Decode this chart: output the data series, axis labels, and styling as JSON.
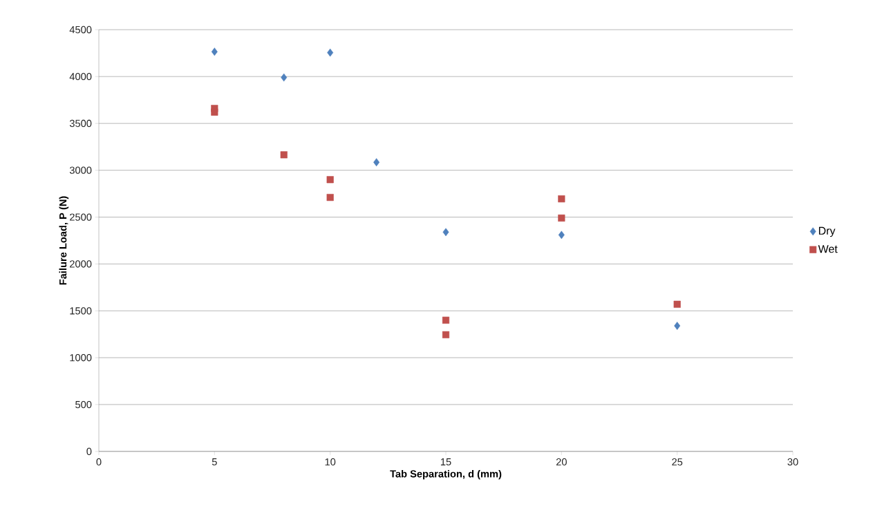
{
  "chart_data": {
    "type": "scatter",
    "xlabel": "Tab Separation, d (mm)",
    "ylabel": "Failure Load, P (N)",
    "xlim": [
      0,
      30
    ],
    "xticks": [
      0,
      5,
      10,
      15,
      20,
      25,
      30
    ],
    "ylim": [
      0,
      4500
    ],
    "yticks": [
      0,
      500,
      1000,
      1500,
      2000,
      2500,
      3000,
      3500,
      4000,
      4500
    ],
    "grid": "y",
    "legend": "right",
    "series": [
      {
        "name": "Dry",
        "color": "#4f81bd",
        "marker": "diamond",
        "x": [
          5,
          8,
          10,
          12,
          15,
          20,
          25
        ],
        "values": [
          4265,
          3990,
          4255,
          3085,
          2340,
          2310,
          1340
        ]
      },
      {
        "name": "Wet",
        "color": "#c0504d",
        "marker": "square",
        "x": [
          5,
          5,
          8,
          10,
          10,
          15,
          15,
          20,
          20,
          25
        ],
        "values": [
          3660,
          3620,
          3165,
          2900,
          2710,
          1400,
          1245,
          2695,
          2490,
          1570
        ]
      }
    ]
  }
}
